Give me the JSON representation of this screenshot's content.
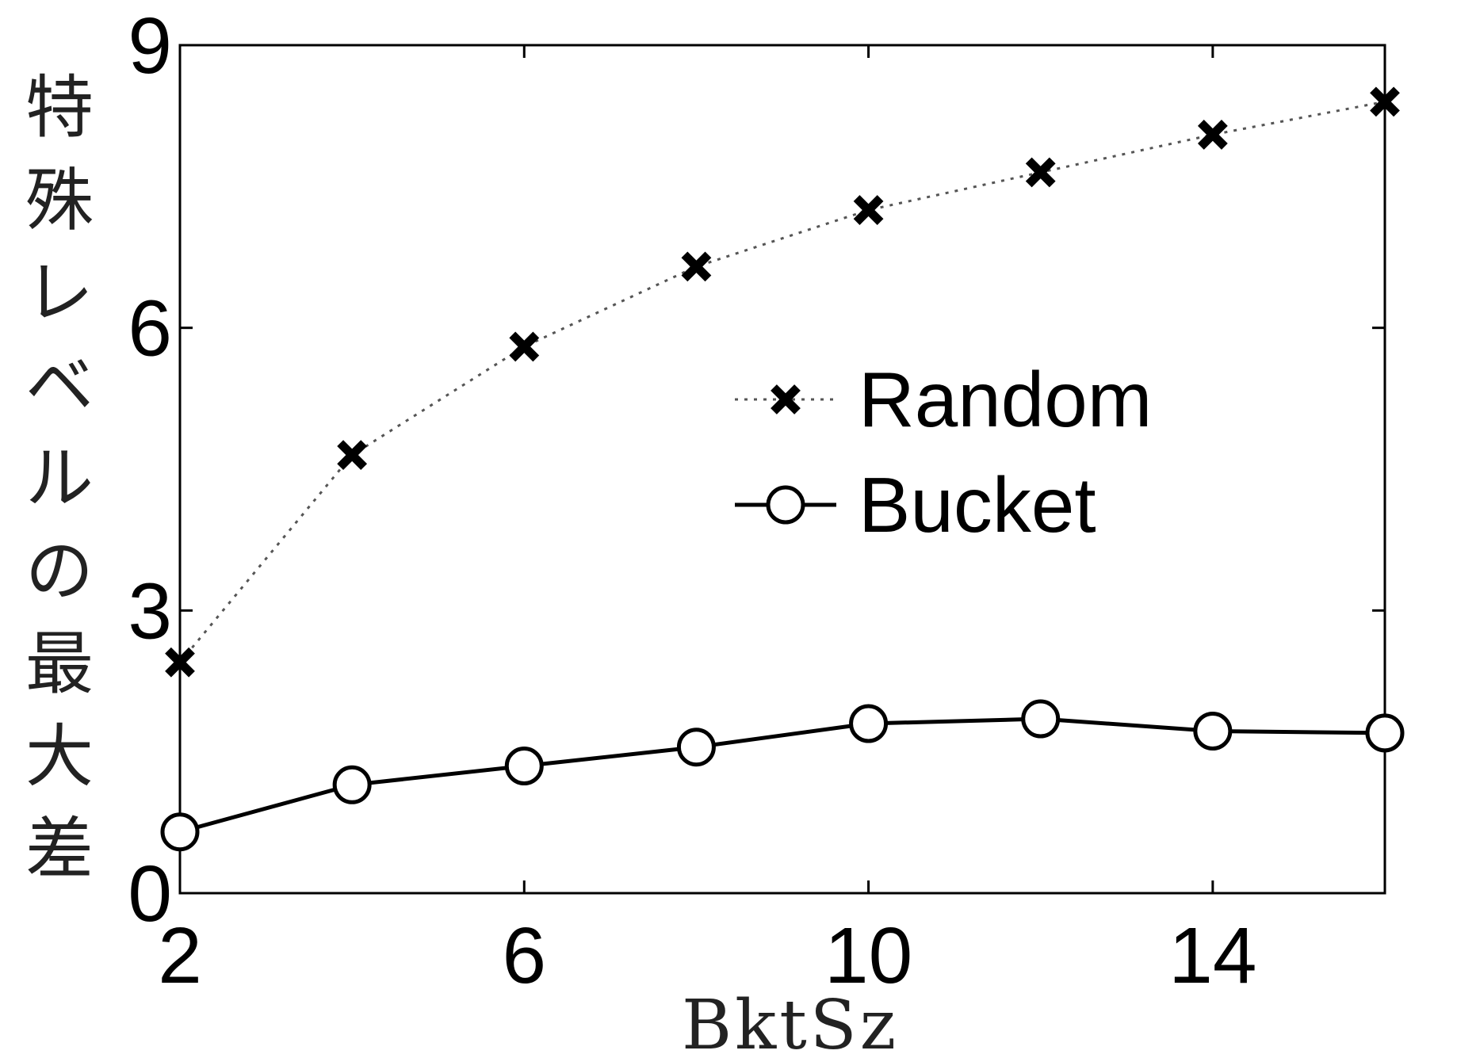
{
  "chart_data": {
    "type": "line",
    "title": "",
    "xlabel": "BktSz",
    "ylabel": "特殊レベルの最大差",
    "xlim": [
      2,
      16
    ],
    "ylim": [
      0,
      9
    ],
    "xticks": [
      2,
      6,
      10,
      14
    ],
    "yticks": [
      0,
      3,
      6,
      9
    ],
    "grid": false,
    "legend_position": "right",
    "x": [
      2,
      4,
      6,
      8,
      10,
      12,
      14,
      16
    ],
    "series": [
      {
        "name": "Random",
        "style": "dotted",
        "marker": "x",
        "color": "#000000",
        "values": [
          2.45,
          4.65,
          5.8,
          6.65,
          7.25,
          7.65,
          8.05,
          8.4
        ]
      },
      {
        "name": "Bucket",
        "style": "solid",
        "marker": "o",
        "color": "#000000",
        "values": [
          0.65,
          1.15,
          1.35,
          1.55,
          1.8,
          1.85,
          1.72,
          1.7
        ]
      }
    ]
  }
}
